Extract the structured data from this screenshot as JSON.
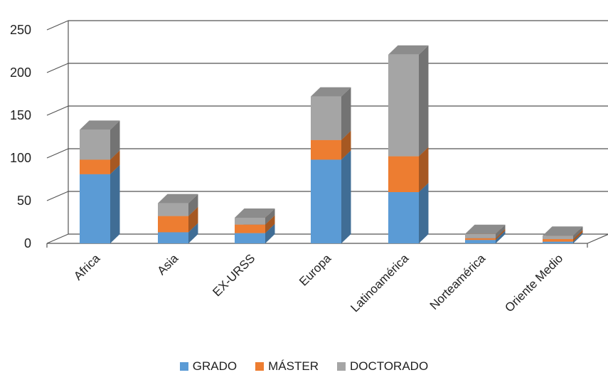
{
  "chart_data": {
    "type": "bar",
    "stacked": true,
    "three_d": true,
    "categories": [
      "Africa",
      "Asia",
      "EX-URSS",
      "Europa",
      "Latinoamérica",
      "Norteamérica",
      "Oriente Medio"
    ],
    "series": [
      {
        "name": "GRADO",
        "color": "#5b9bd5",
        "values": [
          81,
          13,
          12,
          98,
          60,
          4,
          2
        ]
      },
      {
        "name": "MÁSTER",
        "color": "#ed7d31",
        "values": [
          17,
          19,
          10,
          23,
          42,
          2,
          3
        ]
      },
      {
        "name": "DOCTORADO",
        "color": "#a5a5a5",
        "values": [
          35,
          15,
          8,
          51,
          119,
          5,
          4
        ]
      }
    ],
    "yticks": [
      "0",
      "50",
      "100",
      "150",
      "200",
      "250"
    ],
    "ylim": [
      0,
      250
    ],
    "grid": true,
    "legend_position": "bottom",
    "title": "",
    "xlabel": "",
    "ylabel": ""
  }
}
